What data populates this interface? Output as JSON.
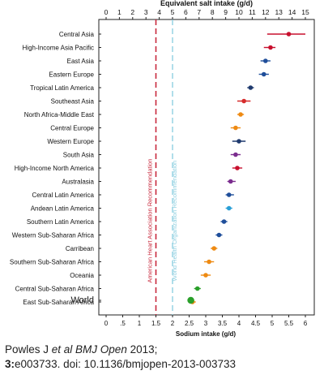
{
  "chart_data": {
    "type": "scatter",
    "top_axis": {
      "label": "Equivalent salt intake (g/d)",
      "ticks": [
        "0",
        "1",
        "2",
        "3",
        "4",
        "5",
        "6",
        "7",
        "8",
        "9",
        "10",
        "11",
        "12",
        "13",
        "14",
        "15"
      ],
      "range": [
        0,
        15
      ]
    },
    "bottom_axis": {
      "label": "Sodium intake (g/d)",
      "ticks": [
        "0",
        ".5",
        "1",
        "1.5",
        "2",
        "2.5",
        "3",
        "3.5",
        "4",
        "4.5",
        "5",
        "5.5",
        "6"
      ],
      "range": [
        0,
        6
      ]
    },
    "reference_lines": [
      {
        "label": "American Heart Association Recommendation",
        "value": 1.5,
        "color": "#c8283c",
        "style": "dashed"
      },
      {
        "label": "World Health Organization Recommendation",
        "value": 2.0,
        "color": "#8ecfe0",
        "style": "dashed"
      }
    ],
    "regions": [
      {
        "name": "Central Asia",
        "sodium": 5.5,
        "ci": [
          4.85,
          6.0
        ],
        "color": "#c8102e"
      },
      {
        "name": "High-Income Asia Pacific",
        "sodium": 4.95,
        "ci": [
          4.75,
          5.1
        ],
        "color": "#c8102e"
      },
      {
        "name": "East Asia",
        "sodium": 4.8,
        "ci": [
          4.65,
          4.95
        ],
        "color": "#1f4e9a"
      },
      {
        "name": "Eastern Europe",
        "sodium": 4.75,
        "ci": [
          4.6,
          4.9
        ],
        "color": "#1f4e9a"
      },
      {
        "name": "Tropical Latin America",
        "sodium": 4.35,
        "ci": [
          4.25,
          4.45
        ],
        "color": "#1f3a6e"
      },
      {
        "name": "Southeast Asia",
        "sodium": 4.15,
        "ci": [
          3.95,
          4.35
        ],
        "color": "#d62b2b"
      },
      {
        "name": "North Africa-Middle East",
        "sodium": 4.05,
        "ci": [
          3.95,
          4.15
        ],
        "color": "#ee8a12"
      },
      {
        "name": "Central Europe",
        "sodium": 3.9,
        "ci": [
          3.75,
          4.05
        ],
        "color": "#ee8a12"
      },
      {
        "name": "Western Europe",
        "sodium": 4.0,
        "ci": [
          3.8,
          4.2
        ],
        "color": "#1f3a6e"
      },
      {
        "name": "South Asia",
        "sodium": 3.9,
        "ci": [
          3.75,
          4.05
        ],
        "color": "#7b2d8e"
      },
      {
        "name": "High-Income North America",
        "sodium": 3.95,
        "ci": [
          3.8,
          4.1
        ],
        "color": "#c8102e"
      },
      {
        "name": "Australasia",
        "sodium": 3.75,
        "ci": [
          3.65,
          3.9
        ],
        "color": "#7b2d8e"
      },
      {
        "name": "Central Latin America",
        "sodium": 3.7,
        "ci": [
          3.6,
          3.85
        ],
        "color": "#1f4e9a"
      },
      {
        "name": "Andean Latin America",
        "sodium": 3.7,
        "ci": [
          3.6,
          3.8
        ],
        "color": "#2a9fd6"
      },
      {
        "name": "Southern Latin America",
        "sodium": 3.55,
        "ci": [
          3.45,
          3.65
        ],
        "color": "#1f4e9a"
      },
      {
        "name": "Western Sub-Saharan Africa",
        "sodium": 3.4,
        "ci": [
          3.3,
          3.5
        ],
        "color": "#1f4e9a"
      },
      {
        "name": "Carribean",
        "sodium": 3.25,
        "ci": [
          3.15,
          3.35
        ],
        "color": "#ee8a12"
      },
      {
        "name": "Southern Sub-Saharan Africa",
        "sodium": 3.1,
        "ci": [
          2.95,
          3.25
        ],
        "color": "#ee8a12"
      },
      {
        "name": "Oceania",
        "sodium": 3.0,
        "ci": [
          2.85,
          3.15
        ],
        "color": "#ee8a12"
      },
      {
        "name": "Central Sub-Saharan Africa",
        "sodium": 2.75,
        "ci": [
          2.65,
          2.85
        ],
        "color": "#2aa02a"
      },
      {
        "name": "East Sub-Saharan Africa",
        "sodium": 2.6,
        "ci": [
          2.5,
          2.7
        ],
        "color": "#ee8a12"
      },
      {
        "name": "World",
        "sodium": 2.55,
        "ci": [
          2.45,
          2.65
        ],
        "color": "#2aa02a"
      }
    ]
  },
  "caption": {
    "line1_prefix": "Powles J ",
    "line1_italic": "et al BMJ Open",
    "line1_suffix": " 2013;",
    "line2_bold": "3:",
    "line2_rest": "e003733. doi: 10.1136/bmjopen-2013-003733"
  }
}
